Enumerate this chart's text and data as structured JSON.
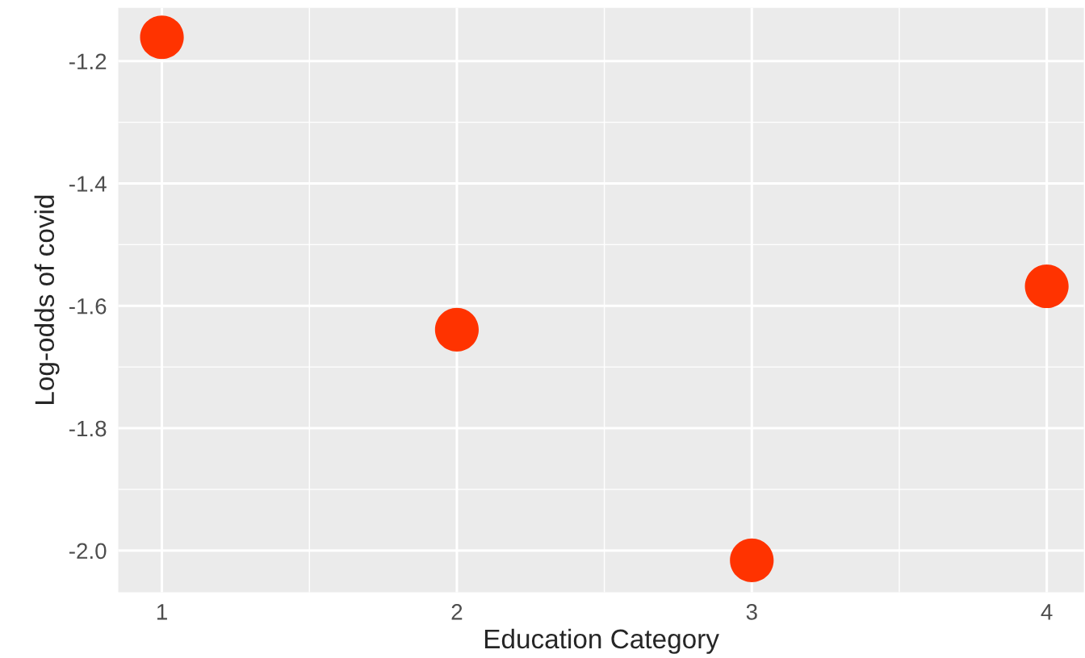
{
  "chart_data": {
    "type": "scatter",
    "xlabel": "Education Category",
    "ylabel": "Log-odds of covid",
    "x": [
      1,
      2,
      3,
      4
    ],
    "series": [
      {
        "color": "#ff3300",
        "values": [
          -1.161,
          -1.639,
          -2.016,
          -1.568
        ]
      }
    ],
    "xlim": [
      0.852,
      4.126
    ],
    "ylim": [
      -2.068,
      -1.113
    ],
    "xticks": [
      1,
      2,
      3,
      4
    ],
    "yticks": [
      {
        "value": -2.0,
        "label": "-2.0"
      },
      -1.8,
      -1.6,
      -1.4,
      -1.2
    ],
    "grid": true
  }
}
